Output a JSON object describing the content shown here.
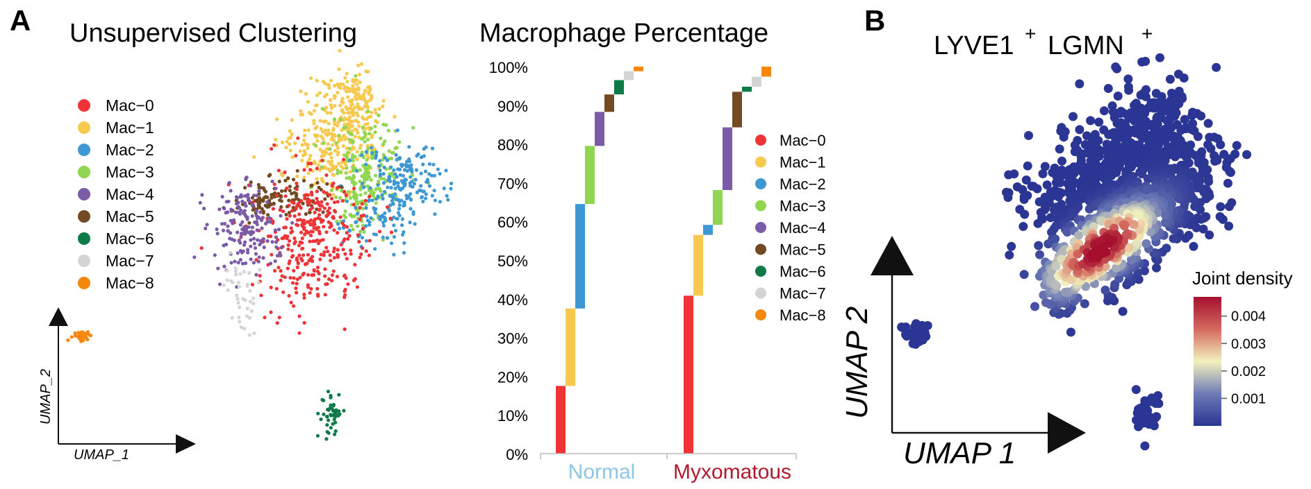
{
  "panels": {
    "a_label": "A",
    "b_label": "B",
    "umap_title": "Unsupervised Clustering",
    "pct_title": "Macrophage Percentage",
    "density_title_g1": "LYVE1",
    "density_title_g2": "LGMN",
    "plus_sign": "+"
  },
  "axes": {
    "umap_small_x": "UMAP_1",
    "umap_small_y": "UMAP_2",
    "umap_big_x": "UMAP 1",
    "umap_big_y": "UMAP 2"
  },
  "clusters": [
    {
      "name": "Mac−0",
      "color": "#ee3437"
    },
    {
      "name": "Mac−1",
      "color": "#f7c94f"
    },
    {
      "name": "Mac−2",
      "color": "#3d98d3"
    },
    {
      "name": "Mac−3",
      "color": "#90d652"
    },
    {
      "name": "Mac−4",
      "color": "#7a5ba8"
    },
    {
      "name": "Mac−5",
      "color": "#744a24"
    },
    {
      "name": "Mac−6",
      "color": "#0e7a47"
    },
    {
      "name": "Mac−7",
      "color": "#d4d4d4"
    },
    {
      "name": "Mac−8",
      "color": "#f5870f"
    }
  ],
  "chart_data": [
    {
      "type": "scatter",
      "title": "Unsupervised Clustering",
      "xlabel": "UMAP_1",
      "ylabel": "UMAP_2",
      "legend": [
        "Mac−0",
        "Mac−1",
        "Mac−2",
        "Mac−3",
        "Mac−4",
        "Mac−5",
        "Mac−6",
        "Mac−7",
        "Mac−8"
      ],
      "legend_position": "top-left",
      "grid": false
    },
    {
      "type": "bar",
      "subtype": "stacked-waterfall",
      "title": "Macrophage Percentage",
      "categories": [
        "Normal",
        "Myxomatous"
      ],
      "category_colors": [
        "#8ec6e6",
        "#b3192d"
      ],
      "y_ticks": [
        "0%",
        "10%",
        "20%",
        "30%",
        "40%",
        "50%",
        "60%",
        "70%",
        "80%",
        "90%",
        "100%"
      ],
      "ylim": [
        0,
        100
      ],
      "series_names": [
        "Mac−0",
        "Mac−1",
        "Mac−2",
        "Mac−3",
        "Mac−4",
        "Mac−5",
        "Mac−6",
        "Mac−7",
        "Mac−8"
      ],
      "values": {
        "Normal": [
          17.5,
          20.0,
          27.0,
          15.0,
          8.8,
          4.5,
          3.7,
          2.3,
          1.2
        ],
        "Myxomatous": [
          40.8,
          15.7,
          2.6,
          9.0,
          16.2,
          9.2,
          1.3,
          2.6,
          2.6
        ]
      },
      "legend_position": "right"
    },
    {
      "type": "heatmap",
      "subtype": "umap-density",
      "title": "LYVE1+ LGMN+",
      "xlabel": "UMAP 1",
      "ylabel": "UMAP 2",
      "colorbar_title": "Joint density",
      "colorbar_ticks": [
        "0.001",
        "0.002",
        "0.003",
        "0.004"
      ],
      "colorbar_range": [
        0.0,
        0.0047
      ],
      "colorbar_colors": [
        "#2b3593",
        "#6f7cb6",
        "#f3f1bd",
        "#d36a5f",
        "#a50f2e"
      ]
    }
  ]
}
